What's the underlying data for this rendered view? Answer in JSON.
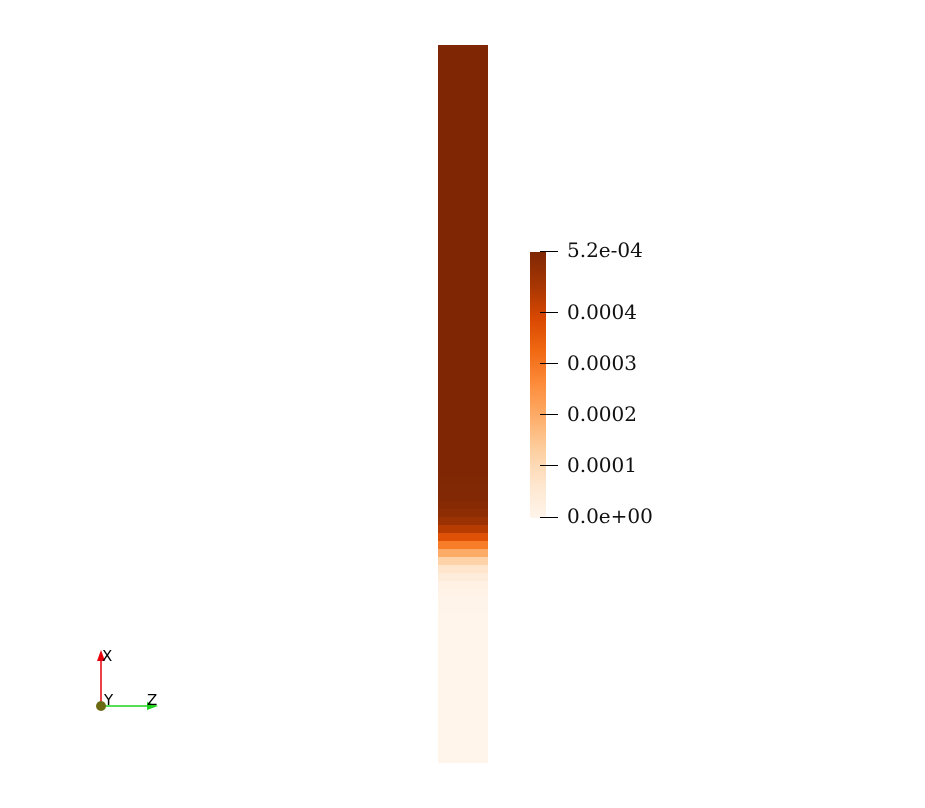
{
  "scalar_bar": {
    "labels": [
      "5.2e-04",
      "0.0004",
      "0.0003",
      "0.0002",
      "0.0001",
      "0.0e+00"
    ],
    "values": [
      0.00052,
      0.0004,
      0.0003,
      0.0002,
      0.0001,
      0.0
    ],
    "range": [
      0.0,
      0.00052
    ],
    "colormap": [
      "#fff5eb",
      "#fee6ce",
      "#fdd0a2",
      "#fdae6b",
      "#fd8d3c",
      "#f16913",
      "#d94801",
      "#a63603",
      "#7f2704"
    ]
  },
  "orientation_axes": {
    "x_label": "X",
    "y_label": "Y",
    "z_label": "Z",
    "x_color": "#e8000b",
    "y_color": "#6b6a12",
    "z_color": "#1fd31f"
  }
}
